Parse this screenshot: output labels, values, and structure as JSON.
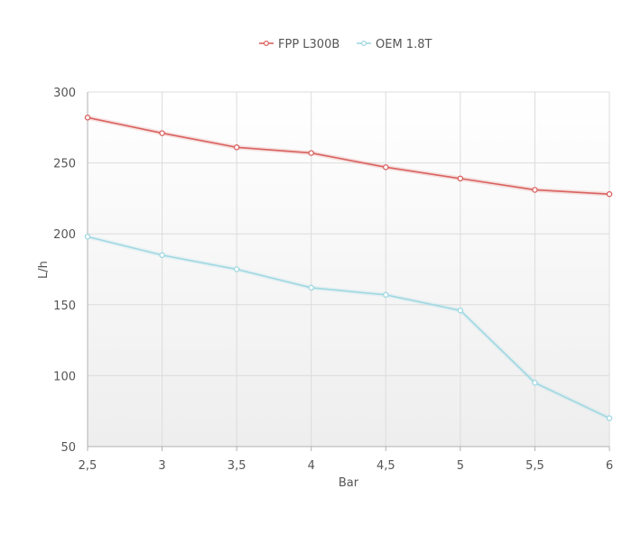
{
  "chart_data": {
    "type": "line",
    "title": "",
    "xlabel": "Bar",
    "ylabel": "L/h",
    "x": [
      2.5,
      3,
      3.5,
      4,
      4.5,
      5,
      5.5,
      6
    ],
    "x_tick_labels": [
      "2,5",
      "3",
      "3,5",
      "4",
      "4,5",
      "5",
      "5,5",
      "6"
    ],
    "xlim": [
      2.5,
      6
    ],
    "ylim": [
      50,
      300
    ],
    "y_ticks": [
      50,
      100,
      150,
      200,
      250,
      300
    ],
    "y_tick_labels": [
      "50",
      "100",
      "150",
      "200",
      "250",
      "300"
    ],
    "grid": true,
    "legend_position": "top-center",
    "series": [
      {
        "name": "FPP L300B",
        "color": "#d9625f",
        "values": [
          282,
          271,
          261,
          257,
          247,
          239,
          231,
          228
        ]
      },
      {
        "name": "OEM 1.8T",
        "color": "#9fd8e2",
        "values": [
          198,
          185,
          175,
          162,
          157,
          146,
          95,
          70
        ]
      }
    ]
  }
}
